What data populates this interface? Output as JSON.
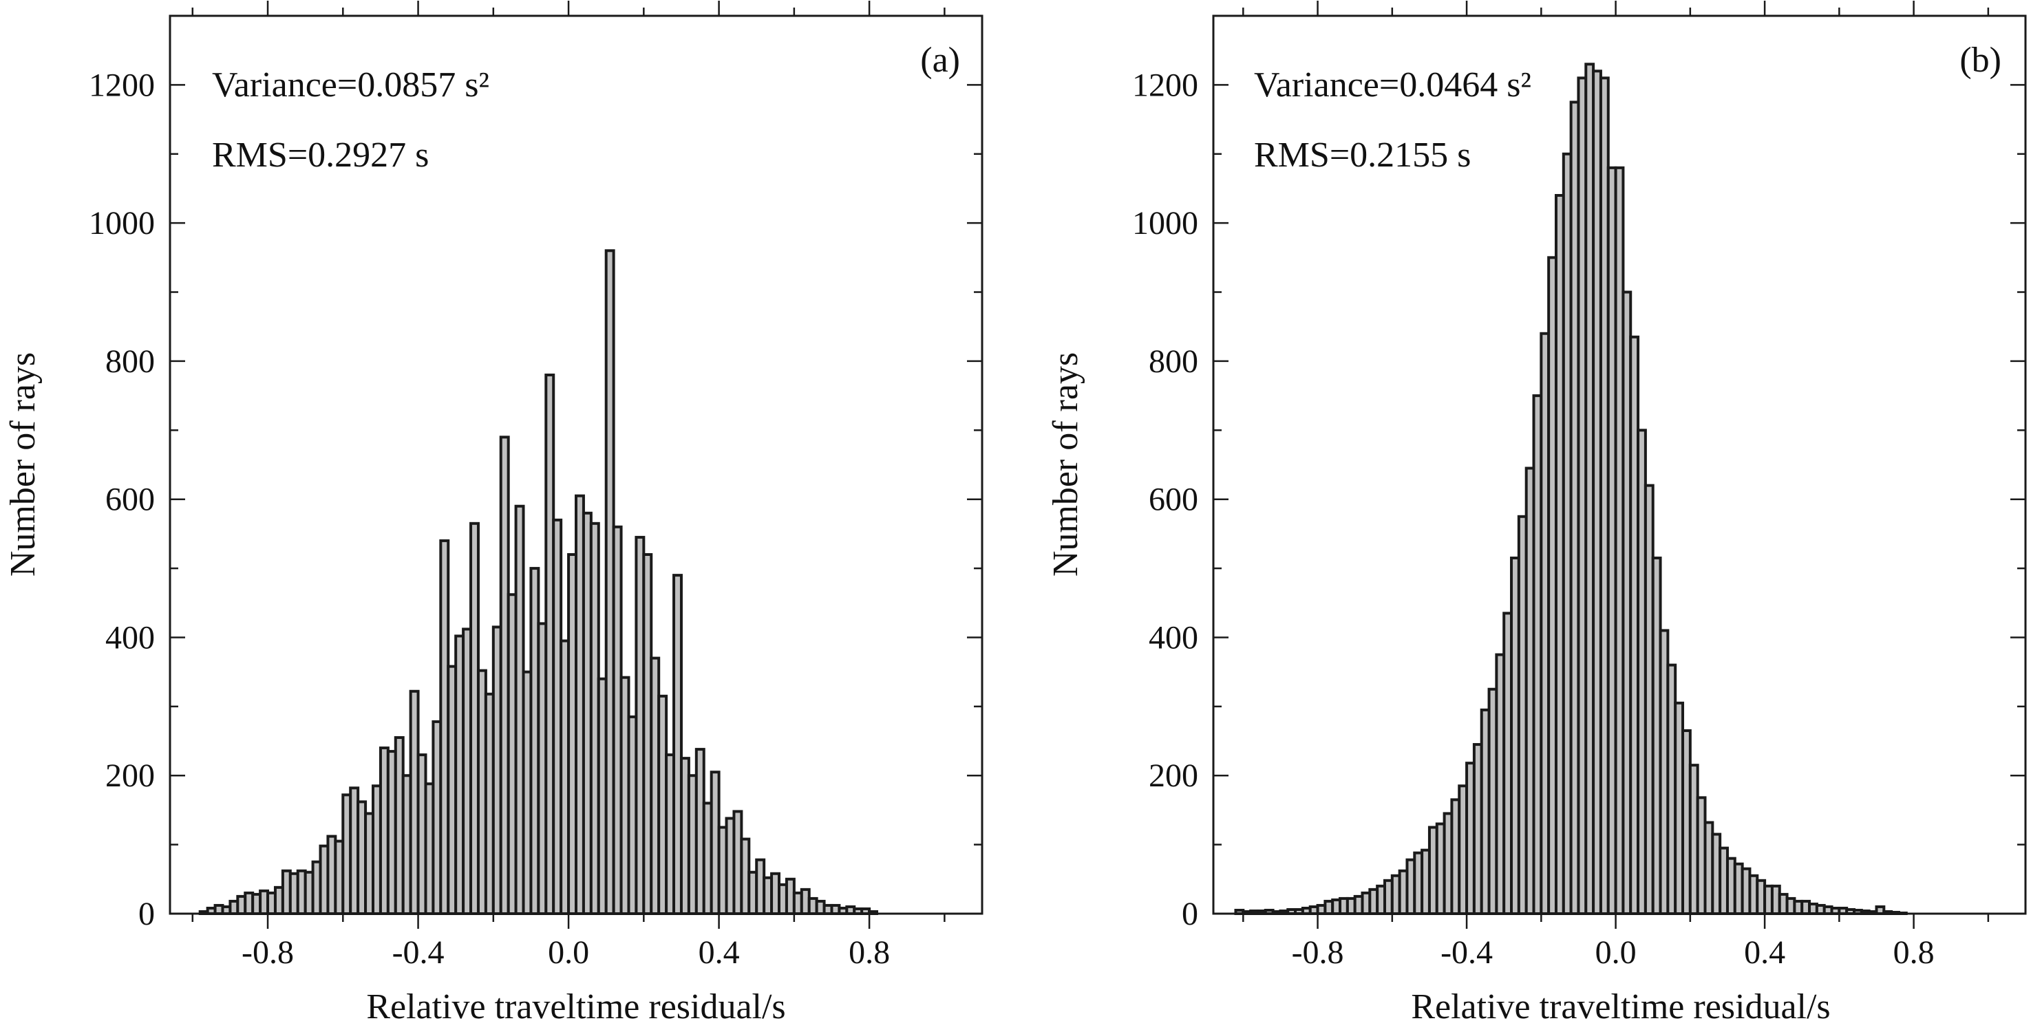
{
  "bar_fill": "#c0c0c0",
  "bar_edge": "#1a1a1a",
  "chart_data": [
    {
      "type": "bar",
      "panel_label": "(a)",
      "variance_text": "Variance=0.0857 s²",
      "rms_text": "RMS=0.2927 s",
      "xlabel": "Relative traveltime residual/s",
      "ylabel": "Number of rays",
      "xlim": [
        -1.06,
        1.1
      ],
      "ylim": [
        0,
        1300
      ],
      "xticks": [
        -0.8,
        -0.4,
        0.0,
        0.4,
        0.8
      ],
      "xtick_labels": [
        "-0.8",
        "-0.4",
        "0.0",
        "0.4",
        "0.8"
      ],
      "yticks": [
        0,
        200,
        400,
        600,
        800,
        1000,
        1200
      ],
      "ytick_labels": [
        "0",
        "200",
        "400",
        "600",
        "800",
        "1000",
        "1200"
      ],
      "bin_start": -0.98,
      "bin_width": 0.02,
      "values": [
        3,
        8,
        12,
        10,
        18,
        25,
        30,
        28,
        33,
        30,
        38,
        62,
        58,
        62,
        60,
        75,
        98,
        112,
        105,
        172,
        182,
        162,
        145,
        185,
        240,
        235,
        255,
        200,
        322,
        230,
        188,
        278,
        540,
        358,
        402,
        412,
        565,
        352,
        318,
        415,
        690,
        462,
        590,
        350,
        500,
        420,
        780,
        570,
        395,
        520,
        605,
        580,
        565,
        340,
        960,
        560,
        342,
        285,
        545,
        520,
        370,
        315,
        230,
        490,
        225,
        200,
        238,
        160,
        205,
        125,
        138,
        148,
        108,
        60,
        78,
        52,
        58,
        42,
        50,
        30,
        35,
        22,
        18,
        12,
        12,
        8,
        10,
        7,
        7,
        3
      ]
    },
    {
      "type": "bar",
      "panel_label": "(b)",
      "variance_text": "Variance=0.0464 s²",
      "rms_text": "RMS=0.2155 s",
      "xlabel": "Relative traveltime residual/s",
      "ylabel": "Number of rays",
      "xlim": [
        -1.08,
        1.1
      ],
      "ylim": [
        0,
        1300
      ],
      "xticks": [
        -0.8,
        -0.4,
        0.0,
        0.4,
        0.8
      ],
      "xtick_labels": [
        "-0.8",
        "-0.4",
        "0.0",
        "0.4",
        "0.8"
      ],
      "yticks": [
        0,
        200,
        400,
        600,
        800,
        1000,
        1200
      ],
      "ytick_labels": [
        "0",
        "200",
        "400",
        "600",
        "800",
        "1000",
        "1200"
      ],
      "bin_start": -1.02,
      "bin_width": 0.02,
      "values": [
        5,
        3,
        4,
        4,
        5,
        3,
        4,
        6,
        6,
        8,
        10,
        12,
        18,
        20,
        22,
        22,
        25,
        30,
        35,
        40,
        48,
        55,
        62,
        78,
        88,
        92,
        125,
        130,
        145,
        165,
        185,
        218,
        245,
        295,
        325,
        375,
        435,
        515,
        575,
        645,
        750,
        840,
        950,
        1040,
        1100,
        1175,
        1210,
        1230,
        1220,
        1210,
        1080,
        1080,
        900,
        835,
        700,
        620,
        515,
        410,
        360,
        305,
        265,
        215,
        168,
        132,
        115,
        95,
        80,
        72,
        65,
        55,
        48,
        40,
        40,
        28,
        22,
        18,
        18,
        14,
        12,
        10,
        8,
        8,
        6,
        5,
        4,
        3,
        10,
        3,
        2,
        1
      ]
    }
  ]
}
